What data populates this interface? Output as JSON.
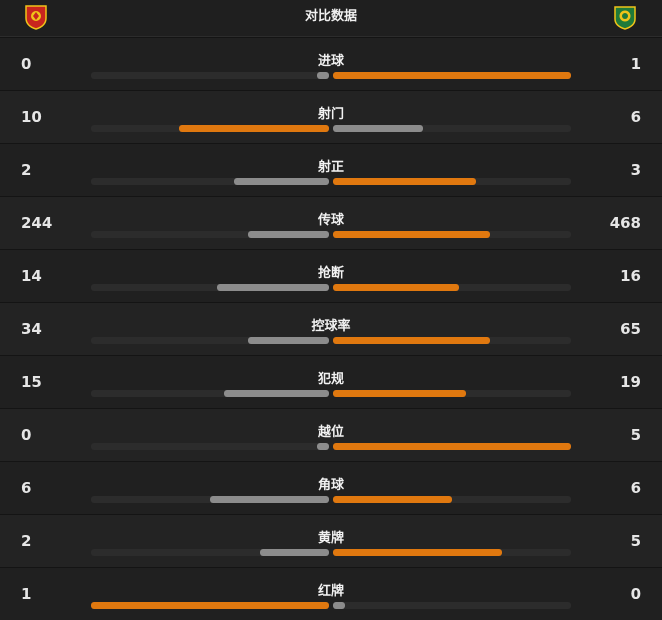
{
  "header": {
    "title": "对比数据",
    "home_logo": "guangzhou-fc-crest-icon",
    "away_logo": "beijing-guoan-crest-icon"
  },
  "colors": {
    "leader_bar": "#e0780f",
    "trailer_bar": "#8c8c8c",
    "background": "#1b1b1b"
  },
  "stats": [
    {
      "label": "进球",
      "home": "0",
      "away": "1",
      "home_fill": 0.05,
      "away_fill": 1.0
    },
    {
      "label": "射门",
      "home": "10",
      "away": "6",
      "home_fill": 0.63,
      "away_fill": 0.38
    },
    {
      "label": "射正",
      "home": "2",
      "away": "3",
      "home_fill": 0.4,
      "away_fill": 0.6
    },
    {
      "label": "传球",
      "home": "244",
      "away": "468",
      "home_fill": 0.34,
      "away_fill": 0.66
    },
    {
      "label": "抢断",
      "home": "14",
      "away": "16",
      "home_fill": 0.47,
      "away_fill": 0.53
    },
    {
      "label": "控球率",
      "home": "34",
      "away": "65",
      "home_fill": 0.34,
      "away_fill": 0.66
    },
    {
      "label": "犯规",
      "home": "15",
      "away": "19",
      "home_fill": 0.44,
      "away_fill": 0.56
    },
    {
      "label": "越位",
      "home": "0",
      "away": "5",
      "home_fill": 0.05,
      "away_fill": 1.0
    },
    {
      "label": "角球",
      "home": "6",
      "away": "6",
      "home_fill": 0.5,
      "away_fill": 0.5
    },
    {
      "label": "黄牌",
      "home": "2",
      "away": "5",
      "home_fill": 0.29,
      "away_fill": 0.71
    },
    {
      "label": "红牌",
      "home": "1",
      "away": "0",
      "home_fill": 1.0,
      "away_fill": 0.05
    }
  ]
}
